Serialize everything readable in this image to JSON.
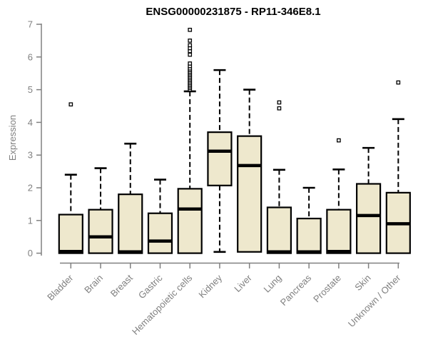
{
  "chart_data": {
    "type": "boxplot",
    "title": "ENSG00000231875 - RP11-346E8.1",
    "ylabel": "Expression",
    "xlabel": "",
    "ylim": [
      0,
      7
    ],
    "yticks": [
      0,
      1,
      2,
      3,
      4,
      5,
      6,
      7
    ],
    "grid": false,
    "legend": "none",
    "categories": [
      "Bladder",
      "Brain",
      "Breast",
      "Gastric",
      "Hematopoietic cells",
      "Kidney",
      "Liver",
      "Lung",
      "Pancreas",
      "Prostate",
      "Skin",
      "Unknown / Other"
    ],
    "series": [
      {
        "category": "Bladder",
        "low": 0,
        "q1": 0,
        "median": 0.05,
        "q3": 1.18,
        "high": 2.4,
        "outliers": [
          4.55
        ]
      },
      {
        "category": "Brain",
        "low": 0,
        "q1": 0,
        "median": 0.5,
        "q3": 1.33,
        "high": 2.6,
        "outliers": []
      },
      {
        "category": "Breast",
        "low": 0,
        "q1": 0,
        "median": 0.04,
        "q3": 1.8,
        "high": 3.35,
        "outliers": []
      },
      {
        "category": "Gastric",
        "low": 0,
        "q1": 0,
        "median": 0.37,
        "q3": 1.22,
        "high": 2.25,
        "outliers": []
      },
      {
        "category": "Hematopoietic cells",
        "low": 0,
        "q1": 0,
        "median": 1.35,
        "q3": 1.97,
        "high": 4.95,
        "outliers": [
          5.0,
          5.05,
          5.1,
          5.15,
          5.2,
          5.25,
          5.3,
          5.35,
          5.4,
          5.45,
          5.5,
          5.55,
          5.6,
          5.65,
          5.72,
          5.8,
          6.07,
          6.18,
          6.27,
          6.36,
          6.5,
          6.83
        ]
      },
      {
        "category": "Kidney",
        "low": 0.04,
        "q1": 2.07,
        "median": 3.12,
        "q3": 3.7,
        "high": 5.6,
        "outliers": []
      },
      {
        "category": "Liver",
        "low": 0.04,
        "q1": 0.04,
        "median": 2.68,
        "q3": 3.58,
        "high": 5.0,
        "outliers": []
      },
      {
        "category": "Lung",
        "low": 0,
        "q1": 0,
        "median": 0.04,
        "q3": 1.4,
        "high": 2.55,
        "outliers": [
          4.43,
          4.61
        ]
      },
      {
        "category": "Pancreas",
        "low": 0,
        "q1": 0,
        "median": 0.04,
        "q3": 1.06,
        "high": 2.0,
        "outliers": []
      },
      {
        "category": "Prostate",
        "low": 0,
        "q1": 0,
        "median": 0.05,
        "q3": 1.33,
        "high": 2.56,
        "outliers": [
          3.45
        ]
      },
      {
        "category": "Skin",
        "low": 0,
        "q1": 0,
        "median": 1.15,
        "q3": 2.12,
        "high": 3.22,
        "outliers": []
      },
      {
        "category": "Unknown / Other",
        "low": 0,
        "q1": 0,
        "median": 0.9,
        "q3": 1.85,
        "high": 4.1,
        "outliers": [
          5.22
        ]
      }
    ],
    "colors": {
      "box_fill": "#EEE8CD",
      "box_border": "#000000",
      "axis": "#808080",
      "text": "#808080",
      "title": "#000000"
    }
  }
}
